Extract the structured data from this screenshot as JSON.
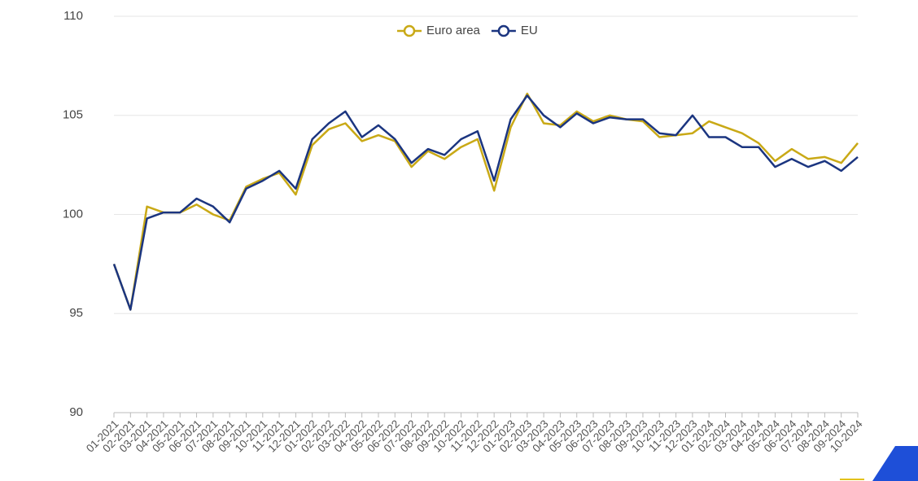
{
  "chart_data": {
    "type": "line",
    "categories": [
      "01-2021",
      "02-2021",
      "03-2021",
      "04-2021",
      "05-2021",
      "06-2021",
      "07-2021",
      "08-2021",
      "09-2021",
      "10-2021",
      "11-2021",
      "12-2021",
      "01-2022",
      "02-2022",
      "03-2022",
      "04-2022",
      "05-2022",
      "06-2022",
      "07-2022",
      "08-2022",
      "09-2022",
      "10-2022",
      "11-2022",
      "12-2022",
      "01-2023",
      "02-2023",
      "03-2023",
      "04-2023",
      "05-2023",
      "06-2023",
      "07-2023",
      "08-2023",
      "09-2023",
      "10-2023",
      "11-2023",
      "12-2023",
      "01-2024",
      "02-2024",
      "03-2024",
      "04-2024",
      "05-2024",
      "06-2024",
      "07-2024",
      "08-2024",
      "09-2024",
      "10-2024"
    ],
    "series": [
      {
        "name": "Euro area",
        "color": "#c9a916",
        "values": [
          97.5,
          95.2,
          100.4,
          100.1,
          100.1,
          100.5,
          100.0,
          99.7,
          101.4,
          101.8,
          102.1,
          101.0,
          103.5,
          104.3,
          104.6,
          103.7,
          104.0,
          103.7,
          102.4,
          103.2,
          102.8,
          103.4,
          103.8,
          101.2,
          104.4,
          106.1,
          104.6,
          104.5,
          105.2,
          104.7,
          105.0,
          104.8,
          104.7,
          103.9,
          104.0,
          104.1,
          104.7,
          104.4,
          104.1,
          103.6,
          102.7,
          103.3,
          102.8,
          102.9,
          102.6,
          103.6
        ]
      },
      {
        "name": "EU",
        "color": "#1b3580",
        "values": [
          97.5,
          95.2,
          99.8,
          100.1,
          100.1,
          100.8,
          100.4,
          99.6,
          101.3,
          101.7,
          102.2,
          101.3,
          103.8,
          104.6,
          105.2,
          103.9,
          104.5,
          103.8,
          102.6,
          103.3,
          103.0,
          103.8,
          104.2,
          101.7,
          104.8,
          106.0,
          105.0,
          104.4,
          105.1,
          104.6,
          104.9,
          104.8,
          104.8,
          104.1,
          104.0,
          105.0,
          103.9,
          103.9,
          103.4,
          103.4,
          102.4,
          102.8,
          102.4,
          102.7,
          102.2,
          102.9
        ]
      }
    ],
    "ylim": [
      90,
      110
    ],
    "yticks": [
      90,
      95,
      100,
      105,
      110
    ],
    "grid": true,
    "legend": "top"
  }
}
